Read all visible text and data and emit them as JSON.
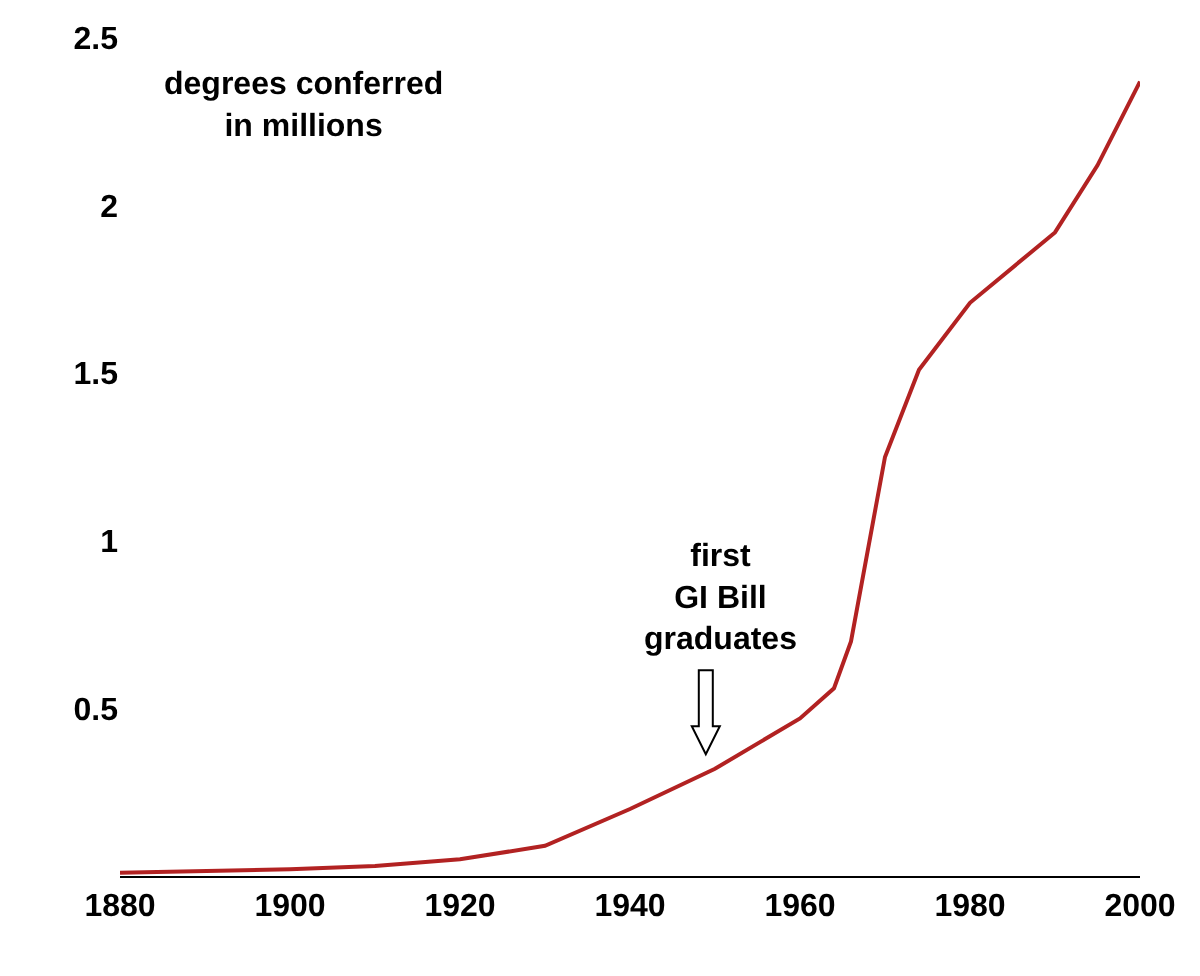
{
  "chart_data": {
    "type": "line",
    "x": [
      1880,
      1900,
      1910,
      1920,
      1930,
      1940,
      1950,
      1960,
      1964,
      1966,
      1970,
      1974,
      1980,
      1990,
      1995,
      2000
    ],
    "series": [
      {
        "color": "#b22222",
        "values": [
          0.01,
          0.02,
          0.03,
          0.05,
          0.09,
          0.2,
          0.32,
          0.47,
          0.56,
          0.7,
          1.25,
          1.51,
          1.71,
          1.92,
          2.12,
          2.37
        ]
      }
    ],
    "xlim": [
      1880,
      2000
    ],
    "xticks": [
      1880,
      1900,
      1920,
      1940,
      1960,
      1980,
      2000
    ],
    "ylim": [
      0,
      2.5
    ],
    "yticks": [
      0.5,
      1,
      1.5,
      2,
      2.5
    ],
    "grid": false,
    "marker": "none",
    "line_style": "solid",
    "annotations": [
      "degrees conferred\nin millions",
      "first\nGI Bill\ngraduates"
    ]
  }
}
